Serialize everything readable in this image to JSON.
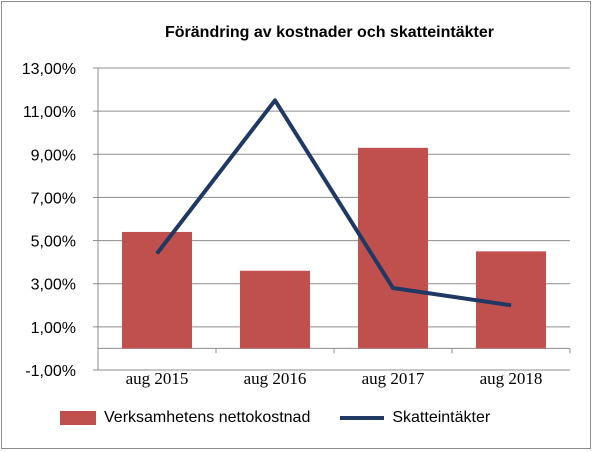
{
  "chart_data": {
    "type": "bar",
    "title": "Förändring av kostnader och skatteintäkter",
    "categories": [
      "aug 2015",
      "aug 2016",
      "aug 2017",
      "aug 2018"
    ],
    "ylim": [
      -1,
      13
    ],
    "yticks": [
      -1,
      1,
      3,
      5,
      7,
      9,
      11,
      13
    ],
    "ytick_labels": [
      "-1,00%",
      "1,00%",
      "3,00%",
      "5,00%",
      "7,00%",
      "9,00%",
      "11,00%",
      "13,00%"
    ],
    "grid": true,
    "legend_position": "bottom",
    "series": [
      {
        "name": "Verksamhetens nettokostnad",
        "type": "bar",
        "color": "#c0504d",
        "values": [
          5.4,
          3.6,
          9.3,
          4.5
        ]
      },
      {
        "name": "Skatteintäkter",
        "type": "line",
        "color": "#1f3864",
        "values": [
          4.4,
          11.5,
          2.8,
          2.0
        ]
      }
    ]
  }
}
